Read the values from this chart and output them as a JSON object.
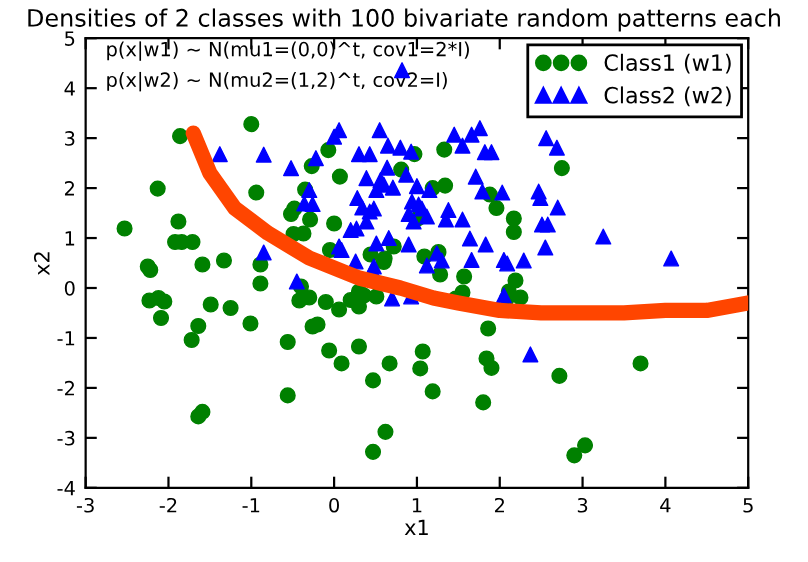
{
  "chart_data": {
    "type": "scatter",
    "title": "Densities of 2 classes with 100 bivariate random patterns each",
    "xlabel": "x1",
    "ylabel": "x2",
    "annotations": [
      "p(x|w1) ~ N(mu1=(0,0)^t, cov1=2*I)",
      "p(x|w2) ~ N(mu2=(1,2)^t, cov2=I)"
    ],
    "xlim": [
      -3,
      5
    ],
    "xticks": [
      -3,
      -2,
      -1,
      0,
      1,
      2,
      3,
      4,
      5
    ],
    "ylim": [
      -4,
      5
    ],
    "yticks": [
      -4,
      -3,
      -2,
      -1,
      0,
      1,
      2,
      3,
      4,
      5
    ],
    "grid": false,
    "legend": "top right",
    "series": [
      {
        "name": "Class1 (w1)",
        "color": "#008000",
        "marker": "circle",
        "x": [
          -1.86,
          -1.0,
          -2.13,
          -2.53,
          -1.88,
          -1.92,
          -1.84,
          -1.71,
          -0.94,
          -0.07,
          -0.27,
          0.07,
          -0.35,
          -0.52,
          -0.48,
          -0.29,
          -0.49,
          -0.37,
          0.0,
          -0.05,
          0.44,
          0.72,
          0.61,
          0.81,
          -0.89,
          -1.33,
          -1.59,
          -2.25,
          -2.22,
          -0.89,
          -2.23,
          -2.12,
          -2.05,
          -2.09,
          -1.49,
          -1.25,
          -1.72,
          -1.64,
          -1.01,
          -0.56,
          -0.56,
          -1.64,
          -1.59,
          -0.4,
          -0.42,
          -0.3,
          -0.1,
          0.06,
          0.2,
          0.3,
          0.3,
          0.36,
          0.51,
          -0.26,
          -0.2,
          -0.06,
          0.09,
          0.3,
          0.47,
          0.67,
          0.62,
          0.47,
          0.6,
          1.07,
          1.04,
          1.09,
          1.28,
          1.57,
          1.47,
          1.55,
          2.19,
          2.11,
          2.09,
          2.25,
          1.86,
          1.19,
          1.84,
          1.9,
          1.8,
          2.72,
          2.9,
          3.03,
          3.7,
          0.97,
          1.33,
          2.75,
          1.19,
          1.34,
          1.88,
          1.96,
          2.17,
          2.17,
          1.01,
          1.26
        ],
        "values": [
          3.04,
          3.28,
          1.99,
          1.19,
          1.33,
          0.92,
          0.92,
          0.92,
          1.91,
          2.76,
          2.44,
          2.23,
          1.97,
          1.48,
          1.59,
          1.37,
          1.08,
          1.09,
          1.29,
          0.76,
          0.67,
          0.83,
          0.59,
          2.37,
          0.47,
          0.55,
          0.47,
          0.43,
          0.36,
          0.09,
          -0.25,
          -0.2,
          -0.27,
          -0.6,
          -0.33,
          -0.4,
          -1.04,
          -0.76,
          -0.71,
          -1.08,
          -2.15,
          -2.57,
          -2.48,
          0.03,
          -0.25,
          -0.19,
          -0.28,
          -0.43,
          -0.24,
          -0.07,
          -0.37,
          -0.15,
          -0.17,
          -0.77,
          -0.73,
          -1.25,
          -1.51,
          -1.17,
          -1.85,
          -1.51,
          -2.88,
          -3.28,
          0.52,
          -1.27,
          -1.61,
          0.63,
          0.27,
          0.23,
          -0.21,
          -0.09,
          0.15,
          -0.07,
          -0.2,
          -0.19,
          -0.81,
          -2.07,
          -1.41,
          -1.6,
          -2.29,
          -1.76,
          -3.35,
          -3.15,
          -1.51,
          2.68,
          2.77,
          2.4,
          2.0,
          2.05,
          1.87,
          1.6,
          1.39,
          1.12,
          1.39,
          0.72
        ]
      },
      {
        "name": "Class2 (w2)",
        "color": "#0000ff",
        "marker": "triangle",
        "x": [
          0.82,
          0.06,
          0.55,
          -1.38,
          -0.85,
          0.3,
          0.43,
          0.65,
          0.8,
          0.93,
          0.0,
          -0.52,
          -0.22,
          0.64,
          0.39,
          0.56,
          0.6,
          0.51,
          0.71,
          0.87,
          1.0,
          -0.3,
          -0.36,
          -0.26,
          0.28,
          0.34,
          0.43,
          0.48,
          0.39,
          0.94,
          0.9,
          0.2,
          0.27,
          0.06,
          0.51,
          0.66,
          0.9,
          0.48,
          1.66,
          1.76,
          1.45,
          1.55,
          1.82,
          1.9,
          2.56,
          2.69,
          1.71,
          2.03,
          1.79,
          1.15,
          2.47,
          2.49,
          2.7,
          1.02,
          1.06,
          1.38,
          1.35,
          1.55,
          0.96,
          1.12,
          2.51,
          2.58,
          3.25,
          1.64,
          1.83,
          2.55,
          1.66,
          2.05,
          2.29,
          2.09,
          4.07,
          1.12,
          1.3,
          1.24,
          2.05,
          0.93,
          2.37,
          -0.85,
          -0.45,
          0.26,
          0.46,
          0.7,
          0.09
        ],
        "values": [
          4.36,
          3.16,
          3.16,
          2.68,
          2.67,
          2.68,
          2.68,
          2.85,
          2.81,
          2.73,
          3.03,
          2.4,
          2.6,
          2.41,
          2.2,
          2.16,
          2.07,
          1.96,
          2.01,
          2.27,
          2.04,
          1.96,
          1.69,
          1.68,
          1.8,
          1.61,
          1.53,
          1.59,
          1.33,
          1.73,
          1.48,
          1.16,
          1.19,
          0.83,
          0.89,
          1.0,
          0.87,
          0.43,
          3.07,
          3.2,
          3.07,
          2.85,
          2.72,
          2.72,
          3.0,
          2.81,
          2.23,
          1.91,
          1.93,
          1.96,
          1.93,
          1.8,
          1.61,
          1.67,
          1.59,
          1.56,
          1.37,
          1.37,
          1.33,
          1.43,
          1.27,
          1.27,
          1.03,
          0.99,
          0.87,
          0.81,
          0.56,
          0.56,
          0.55,
          0.49,
          0.59,
          0.45,
          0.55,
          0.69,
          -0.15,
          -0.17,
          -1.33,
          0.71,
          0.13,
          0.53,
          0.36,
          -0.21,
          0.76
        ]
      },
      {
        "type": "line",
        "color": "#ff4500",
        "marker": "none",
        "x": [
          -1.7,
          -1.5,
          -1.2,
          -0.8,
          -0.3,
          0.3,
          0.8,
          1.2,
          1.5,
          2.0,
          2.5,
          3.0,
          3.5,
          4.0,
          4.5,
          5.0
        ],
        "values": [
          3.1,
          2.3,
          1.6,
          1.1,
          0.6,
          0.2,
          0.0,
          -0.2,
          -0.3,
          -0.45,
          -0.5,
          -0.5,
          -0.5,
          -0.45,
          -0.45,
          -0.3
        ]
      }
    ]
  }
}
